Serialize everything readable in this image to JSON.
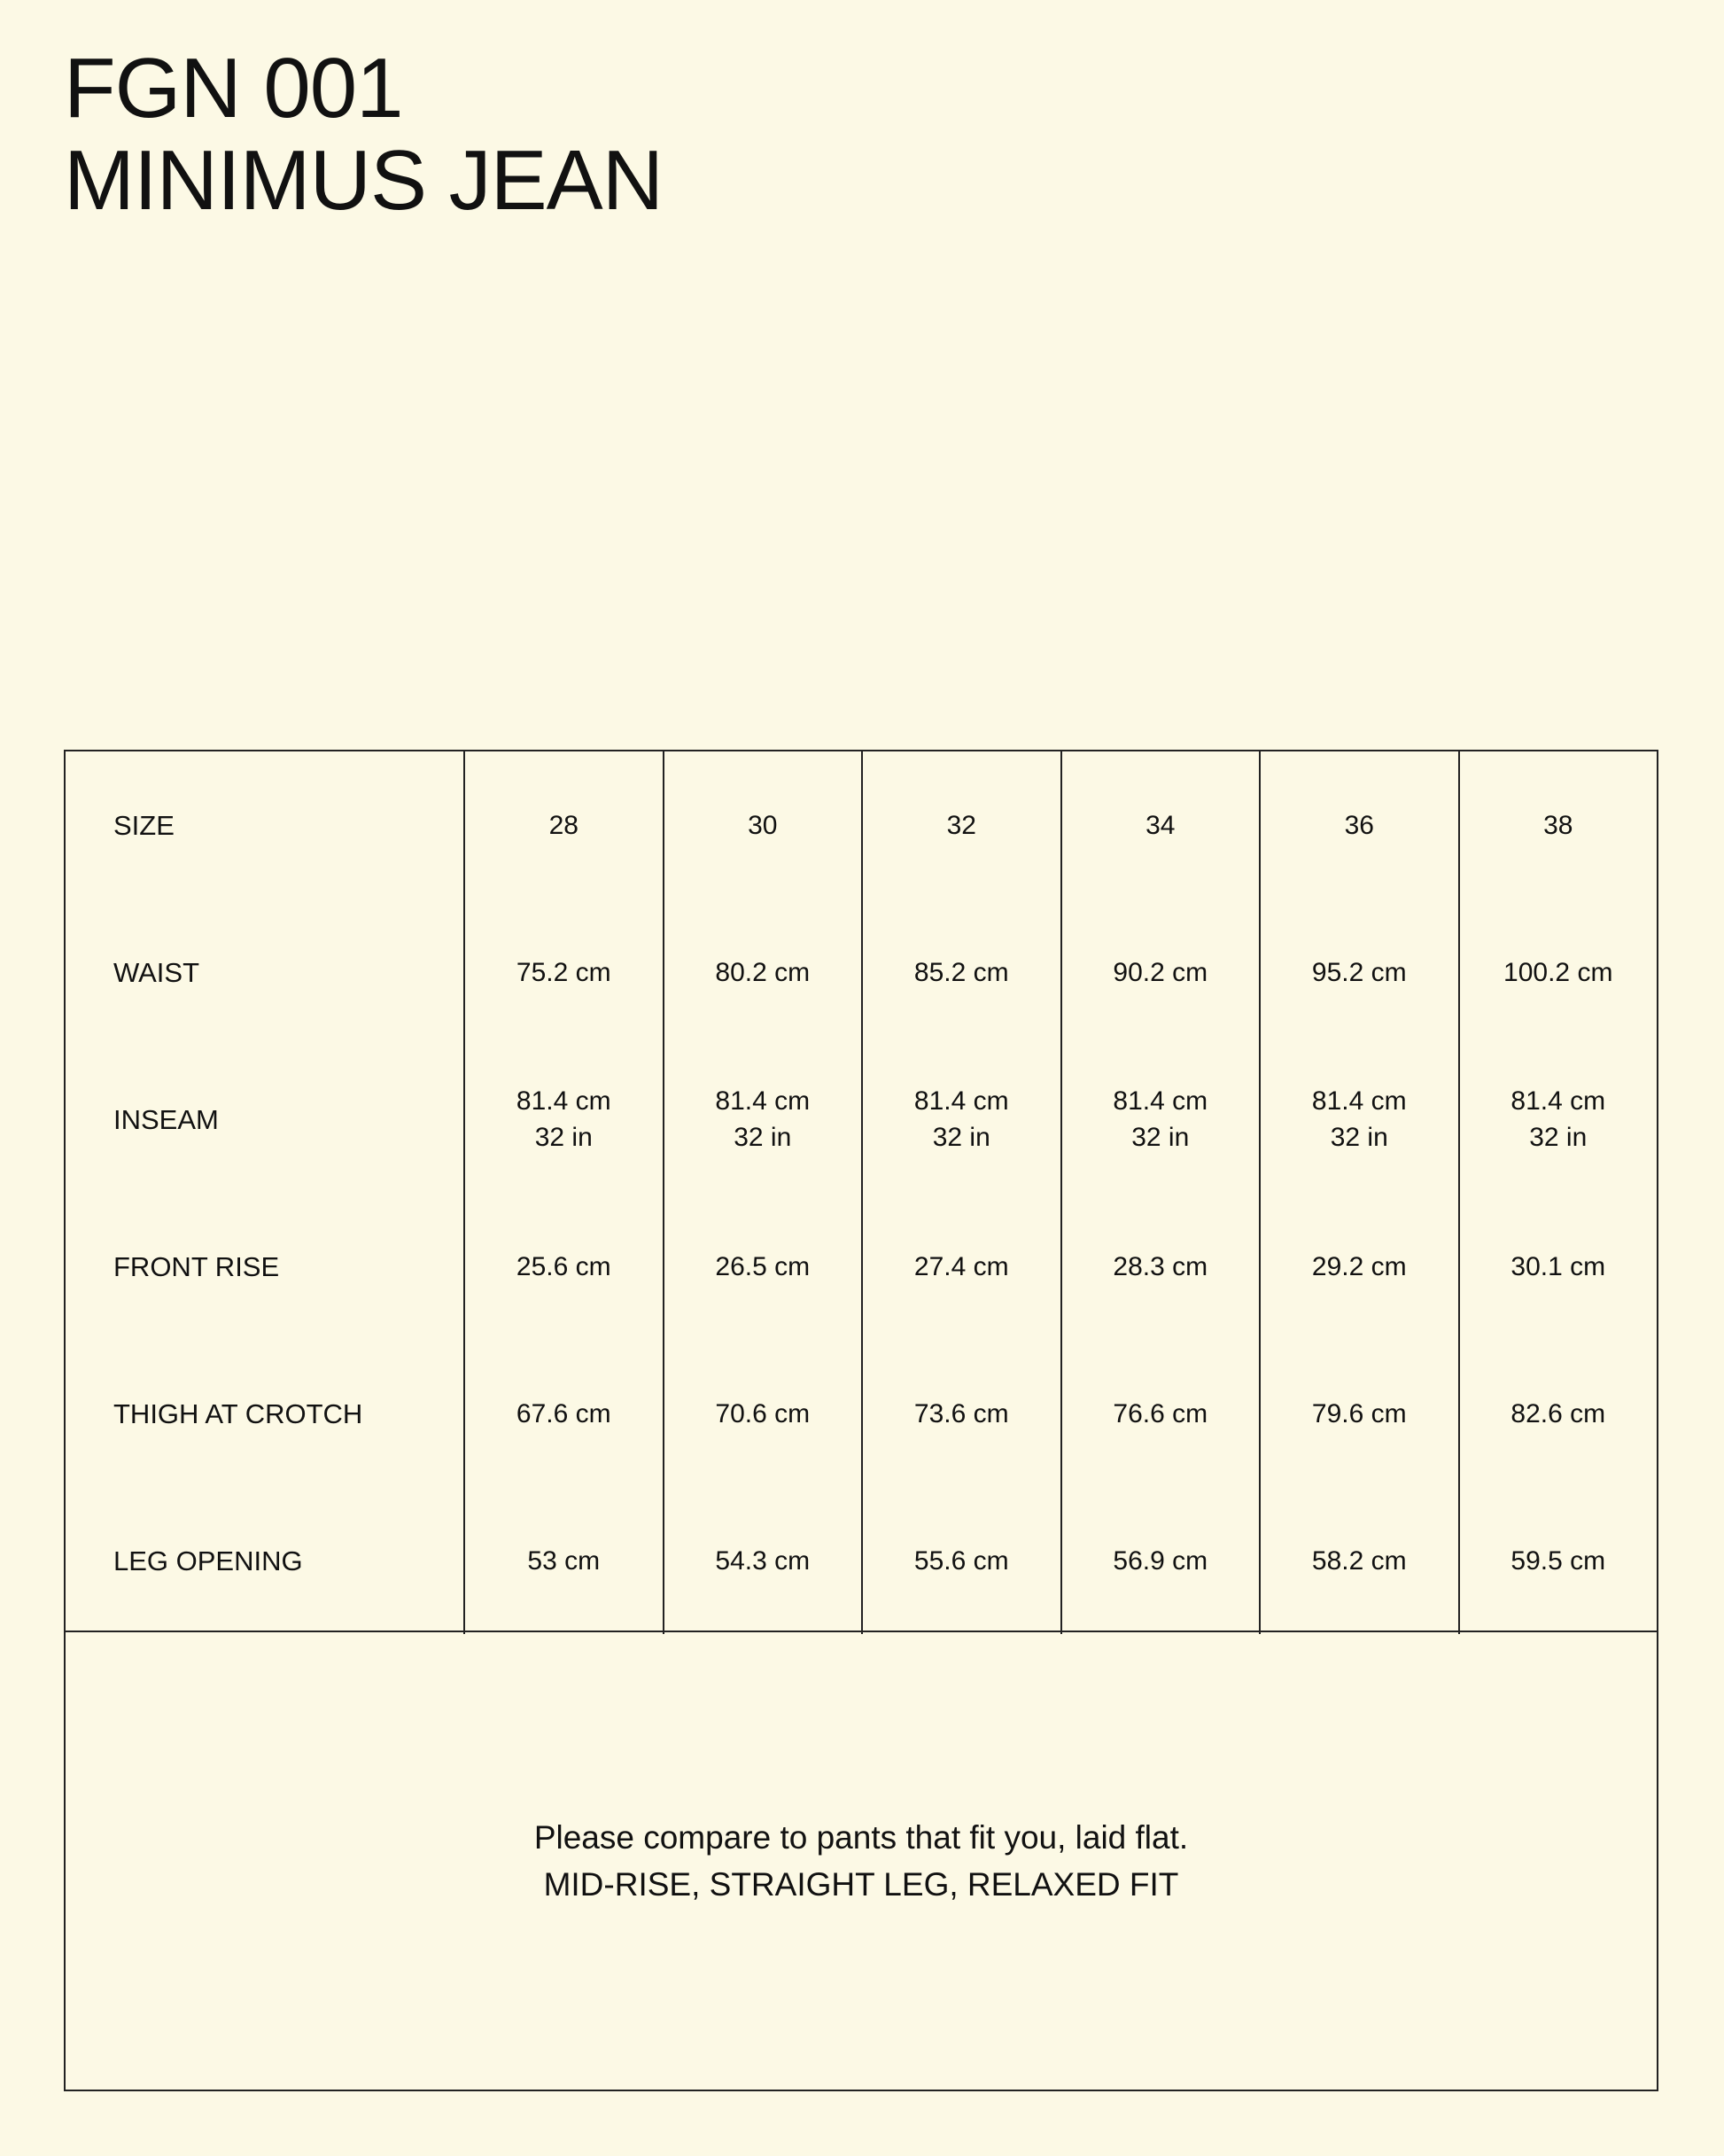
{
  "title": {
    "line1": "FGN 001",
    "line2": "MINIMUS JEAN"
  },
  "size_chart": {
    "row_labels": [
      "SIZE",
      "WAIST",
      "INSEAM",
      "FRONT RISE",
      "THIGH AT CROTCH",
      "LEG OPENING"
    ],
    "columns": [
      {
        "size": "28",
        "waist": "75.2 cm",
        "inseam_cm": "81.4 cm",
        "inseam_in": "32 in",
        "front_rise": "25.6 cm",
        "thigh": "67.6 cm",
        "leg_opening": "53 cm"
      },
      {
        "size": "30",
        "waist": "80.2 cm",
        "inseam_cm": "81.4 cm",
        "inseam_in": "32 in",
        "front_rise": "26.5 cm",
        "thigh": "70.6 cm",
        "leg_opening": "54.3 cm"
      },
      {
        "size": "32",
        "waist": "85.2 cm",
        "inseam_cm": "81.4 cm",
        "inseam_in": "32 in",
        "front_rise": "27.4 cm",
        "thigh": "73.6 cm",
        "leg_opening": "55.6 cm"
      },
      {
        "size": "34",
        "waist": "90.2 cm",
        "inseam_cm": "81.4 cm",
        "inseam_in": "32 in",
        "front_rise": "28.3 cm",
        "thigh": "76.6 cm",
        "leg_opening": "56.9 cm"
      },
      {
        "size": "36",
        "waist": "95.2 cm",
        "inseam_cm": "81.4 cm",
        "inseam_in": "32 in",
        "front_rise": "29.2 cm",
        "thigh": "79.6 cm",
        "leg_opening": "58.2 cm"
      },
      {
        "size": "38",
        "waist": "100.2 cm",
        "inseam_cm": "81.4 cm",
        "inseam_in": "32 in",
        "front_rise": "30.1 cm",
        "thigh": "82.6 cm",
        "leg_opening": "59.5 cm"
      }
    ]
  },
  "note": {
    "line1": "Please compare to pants that fit you, laid flat.",
    "line2": "MID-RISE, STRAIGHT LEG, RELAXED FIT"
  },
  "colors": {
    "background": "#fcf9e5",
    "text": "#111111",
    "border": "#222222"
  }
}
